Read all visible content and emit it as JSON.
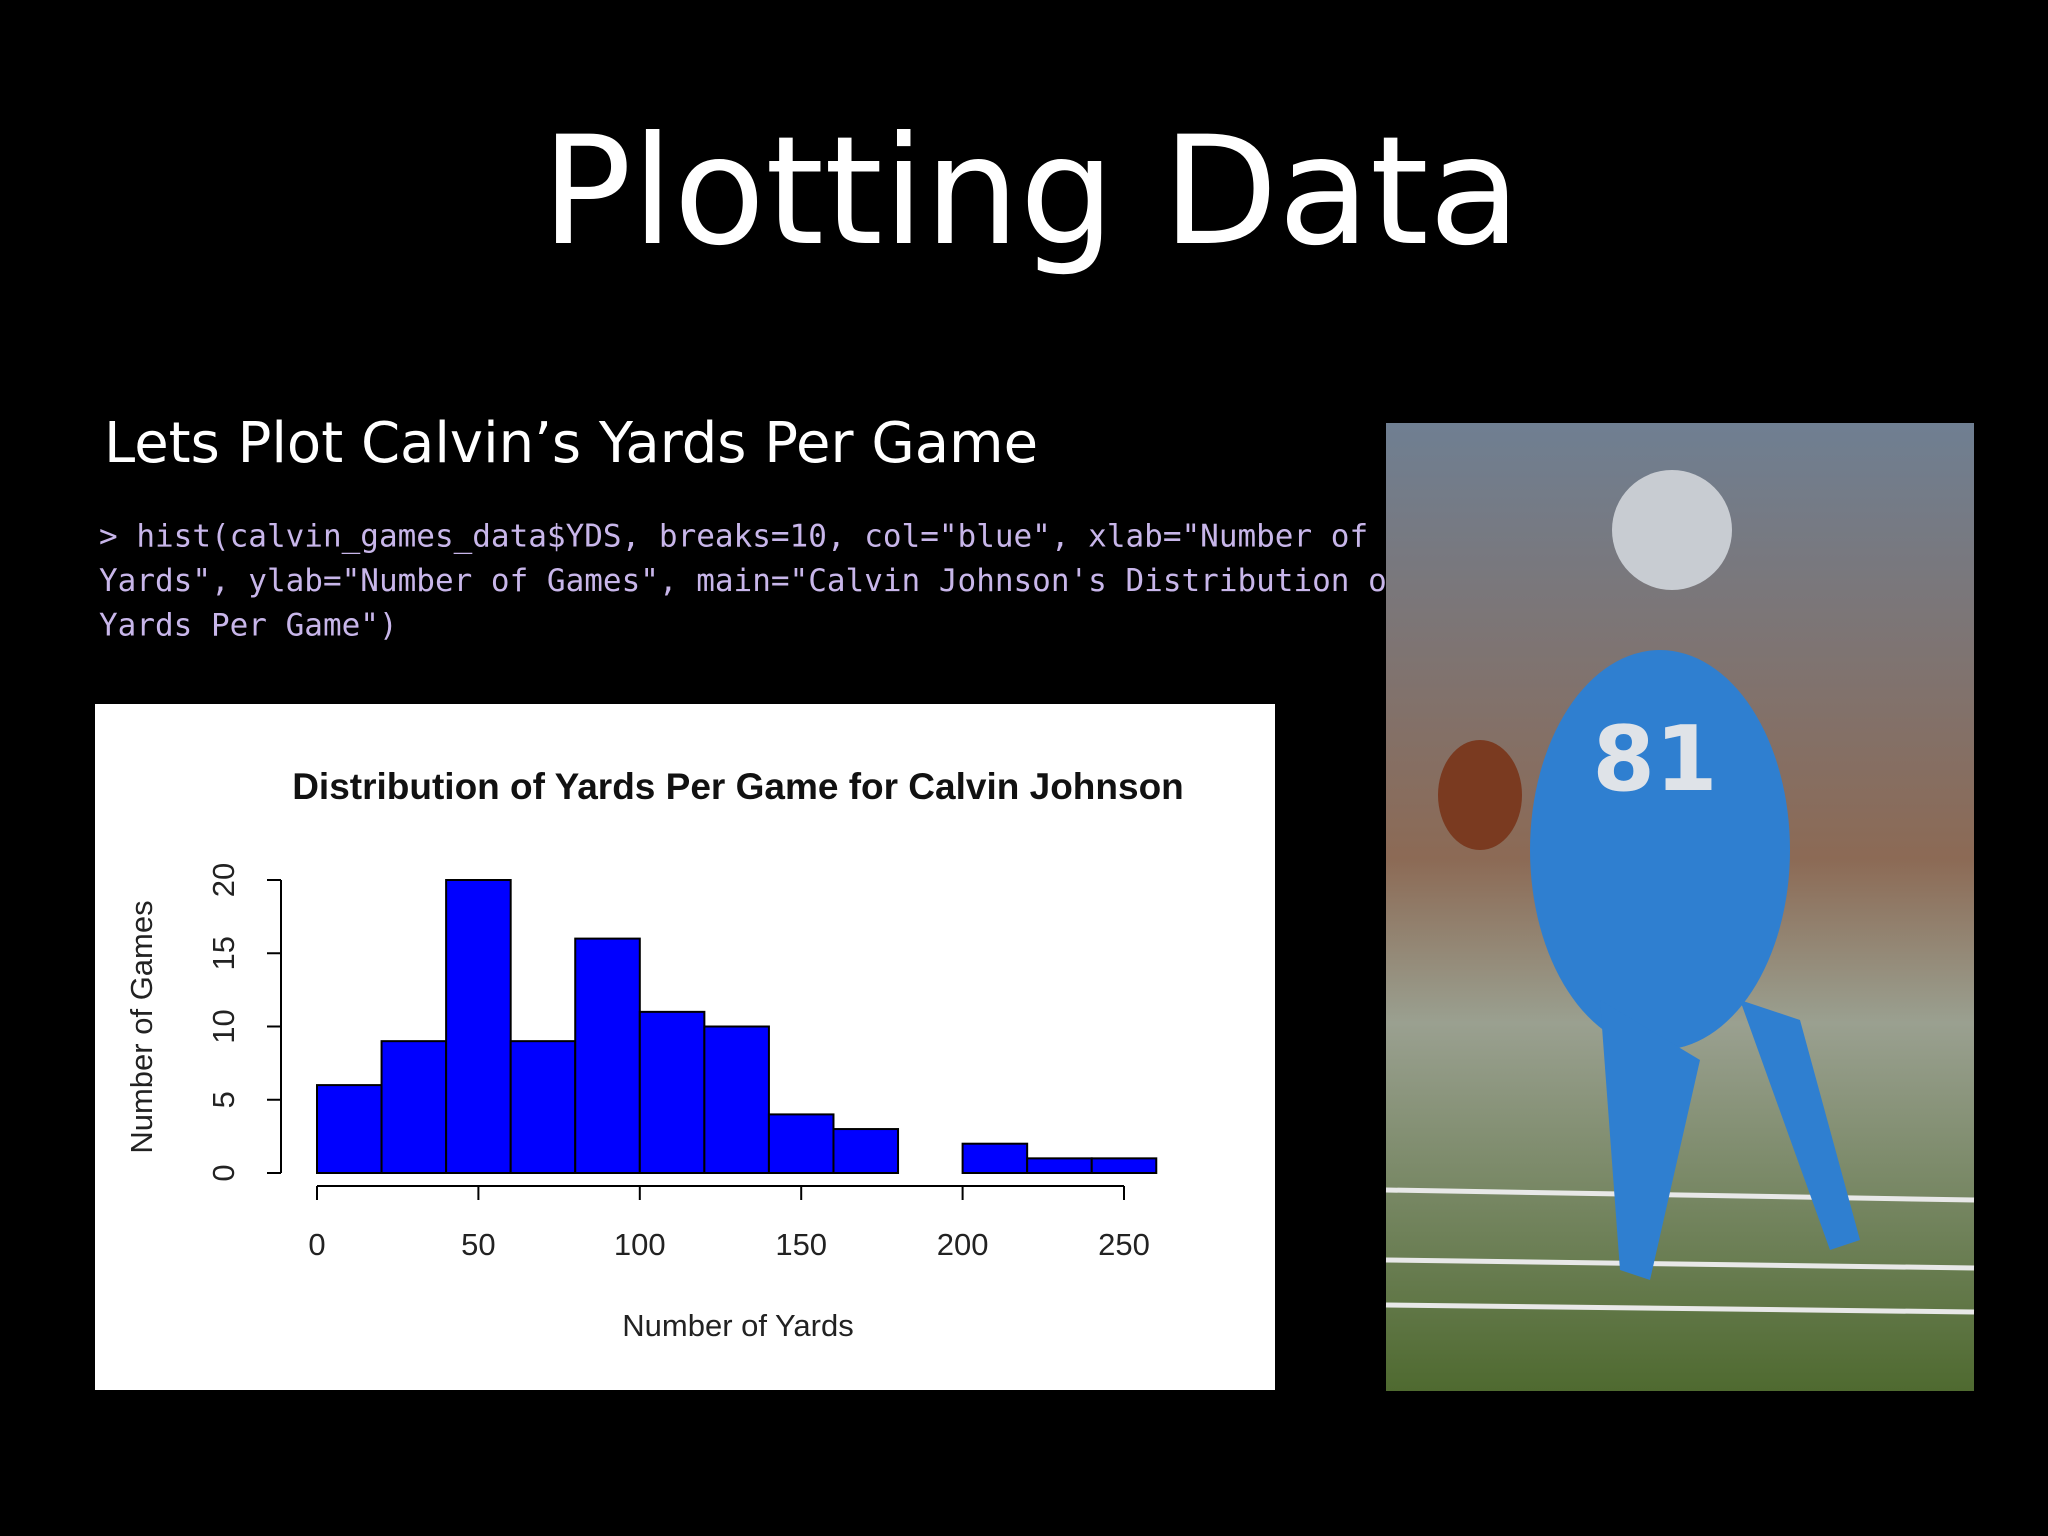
{
  "slide": {
    "title": "Plotting Data",
    "subtitle": "Lets Plot Calvin’s Yards Per Game",
    "code_lines": [
      "> hist(calvin_games_data$YDS, breaks=10, col=\"blue\", xlab=\"Number of",
      "Yards\", ylab=\"Number of Games\", main=\"Calvin Johnson's Distribution of",
      "Yards Per Game\")"
    ]
  },
  "chart_data": {
    "type": "histogram",
    "title": "Distribution of Yards Per Game for Calvin Johnson",
    "x_label": "Number of Yards",
    "y_label": "Number of Games",
    "bins": [
      0,
      20,
      40,
      60,
      80,
      100,
      120,
      140,
      160,
      180,
      200,
      220,
      240,
      260
    ],
    "values": [
      6,
      9,
      20,
      9,
      16,
      11,
      10,
      4,
      3,
      0,
      2,
      1,
      1
    ],
    "color": "#0000ff",
    "xlim": [
      0,
      260
    ],
    "xticks": [
      0,
      50,
      100,
      150,
      200,
      250
    ],
    "ylim": [
      0,
      20
    ],
    "yticks": [
      0,
      5,
      10,
      15,
      20
    ]
  }
}
